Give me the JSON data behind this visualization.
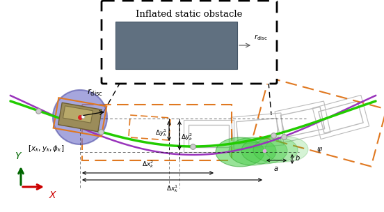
{
  "bg_color": "#ffffff",
  "green_curve_color": "#22cc00",
  "purple_curve_color": "#9933bb",
  "orange_color": "#e07820",
  "blue_circle_color": "#7777cc",
  "green_ellipse_color": "#44cc44",
  "dark_rect_color": "#607080",
  "vehicle_color": "#9b8c5a",
  "axis_y_color": "#006600",
  "axis_x_color": "#cc0000",
  "grey_rect_color": "#bbbbbb",
  "title_text": "Inflated static obstacle",
  "rdisc_label": "$r_{\\mathrm{disc}}$",
  "state_label": "$[x_k, y_k, \\phi_k]$",
  "dy1_label": "$\\Delta y_k^1$",
  "dy2_label": "$\\Delta y_k^2$",
  "dx1_label": "$\\Delta x_k^1$",
  "dx2_label": "$\\Delta x_k^2$",
  "a_label": "$a$",
  "b_label": "$b$",
  "psi_label": "$\\psi$",
  "Y_label": "$Y$",
  "X_label": "$X$"
}
